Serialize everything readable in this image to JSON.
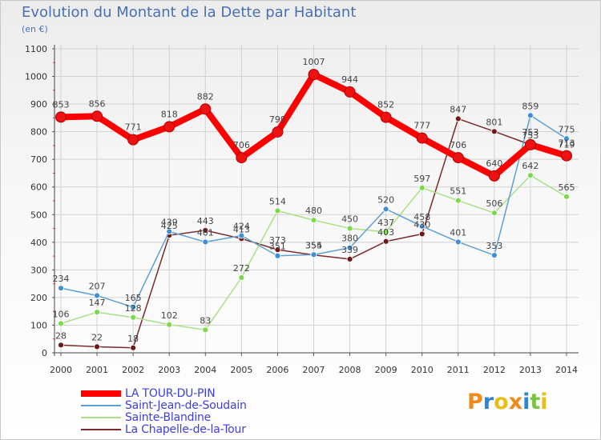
{
  "chart_data": {
    "type": "line",
    "title": "Evolution du Montant de la Dette par Habitant",
    "subtitle": "(en €)",
    "xlabel": "",
    "ylabel": "",
    "ylim": [
      0,
      1100
    ],
    "yticks": [
      0,
      100,
      200,
      300,
      400,
      500,
      600,
      700,
      800,
      900,
      1000,
      1100
    ],
    "categories": [
      "2000",
      "2001",
      "2002",
      "2003",
      "2004",
      "2005",
      "2006",
      "2007",
      "2008",
      "2009",
      "2010",
      "2011",
      "2012",
      "2013",
      "2014"
    ],
    "grid": true,
    "legend_position": "bottom-left",
    "series": [
      {
        "name": "LA TOUR-DU-PIN",
        "color": "#ff0000",
        "marker_color": "#ee1111",
        "emphasis": true,
        "values": [
          853,
          856,
          771,
          818,
          882,
          706,
          799,
          1007,
          944,
          852,
          777,
          706,
          640,
          753,
          713
        ],
        "labels": [
          "853",
          "856",
          "771",
          "818",
          "882",
          "706",
          "799",
          "1007",
          "944",
          "852",
          "777",
          "706",
          "640",
          "753",
          "713"
        ]
      },
      {
        "name": "Saint-Jean-de-Soudain",
        "color": "#5f9fd2",
        "marker_color": "#3f8fd8",
        "values": [
          234,
          207,
          165,
          439,
          401,
          424,
          351,
          355,
          380,
          520,
          458,
          401,
          353,
          859,
          775
        ],
        "labels": [
          "234",
          "207",
          "165",
          "439",
          "401",
          "424",
          "351",
          "355",
          "380",
          "520",
          "458",
          "401",
          "353",
          "859",
          "775"
        ]
      },
      {
        "name": "Sainte-Blandine",
        "color": "#a9e088",
        "marker_color": "#7ed84d",
        "values": [
          106,
          147,
          128,
          102,
          83,
          272,
          514,
          480,
          450,
          437,
          597,
          551,
          506,
          642,
          565
        ],
        "labels": [
          "106",
          "147",
          "128",
          "102",
          "83",
          "272",
          "514",
          "480",
          "450",
          "437",
          "597",
          "551",
          "506",
          "642",
          "565"
        ]
      },
      {
        "name": "La Chapelle-de-la-Tour",
        "color": "#7a2a2a",
        "marker_color": "#6e1818",
        "values": [
          28,
          22,
          18,
          425,
          443,
          413,
          373,
          354,
          339,
          403,
          430,
          847,
          801,
          753,
          719
        ],
        "labels": [
          "28",
          "22",
          "18",
          "425",
          "443",
          "413",
          "373",
          "354",
          "339",
          "403",
          "430",
          "847",
          "801",
          "753",
          "719"
        ]
      }
    ]
  },
  "logo": {
    "text": "Proxiti",
    "letters": [
      {
        "ch": "P",
        "color": "#f08a1c"
      },
      {
        "ch": "r",
        "color": "#2e86d1"
      },
      {
        "ch": "o",
        "color": "#e5bf1c"
      },
      {
        "ch": "x",
        "color": "#f08a1c"
      },
      {
        "ch": "i",
        "color": "#2e86d1"
      },
      {
        "ch": "t",
        "color": "#7cc242"
      },
      {
        "ch": "i",
        "color": "#e5bf1c"
      }
    ]
  }
}
